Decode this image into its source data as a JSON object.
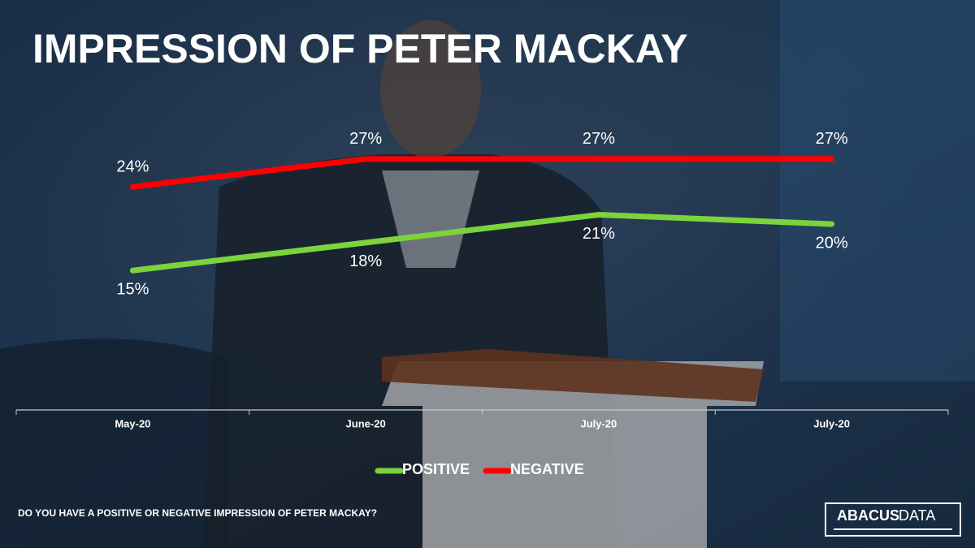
{
  "chart_data": {
    "type": "line",
    "title": "IMPRESSION OF PETER MACKAY",
    "categories": [
      "May-20",
      "June-20",
      "July-20",
      "July-20"
    ],
    "series": [
      {
        "name": "POSITIVE",
        "color": "#7cd33c",
        "values": [
          15,
          18,
          21,
          20
        ],
        "value_labels": [
          "15%",
          "18%",
          "21%",
          "20%"
        ]
      },
      {
        "name": "NEGATIVE",
        "color": "#ff0000",
        "values": [
          24,
          27,
          27,
          27
        ],
        "value_labels": [
          "24%",
          "27%",
          "27%",
          "27%"
        ]
      }
    ],
    "legend": "bottom"
  },
  "footer": {
    "question": "DO YOU HAVE A POSITIVE OR NEGATIVE IMPRESSION OF PETER MACKAY?",
    "logo": [
      "ABACUS",
      "DATA"
    ]
  }
}
